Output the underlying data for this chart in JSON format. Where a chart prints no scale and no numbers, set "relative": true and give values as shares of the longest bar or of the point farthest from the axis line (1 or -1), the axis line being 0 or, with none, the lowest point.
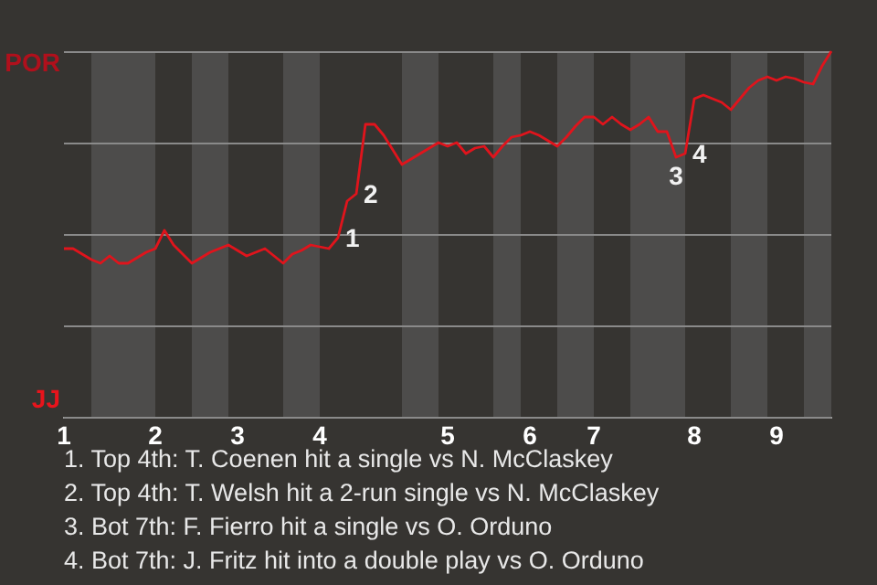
{
  "chart_data": {
    "type": "line",
    "relative": true,
    "categories": [
      "1",
      null,
      null,
      null,
      null,
      null,
      null,
      null,
      null,
      null,
      "2",
      null,
      null,
      null,
      null,
      null,
      null,
      null,
      null,
      "3",
      null,
      null,
      null,
      null,
      null,
      null,
      null,
      null,
      "4",
      null,
      null,
      null,
      null,
      null,
      null,
      null,
      null,
      null,
      null,
      null,
      null,
      null,
      "5",
      null,
      null,
      null,
      null,
      null,
      null,
      null,
      null,
      "6",
      null,
      null,
      null,
      null,
      null,
      null,
      "7",
      null,
      null,
      null,
      null,
      null,
      null,
      null,
      null,
      null,
      null,
      "8",
      null,
      null,
      null,
      null,
      null,
      null,
      null,
      null,
      "9",
      null,
      null,
      null,
      null,
      null,
      null
    ],
    "series": [
      {
        "color": "#e0141c",
        "values": [
          0.46,
          0.46,
          0.445,
          0.43,
          0.42,
          0.44,
          0.42,
          0.42,
          0.435,
          0.45,
          0.46,
          0.51,
          0.47,
          0.445,
          0.42,
          0.435,
          0.45,
          0.46,
          0.47,
          0.455,
          0.44,
          0.45,
          0.46,
          0.44,
          0.42,
          0.445,
          0.455,
          0.47,
          0.465,
          0.46,
          0.49,
          0.59,
          0.61,
          0.8,
          0.8,
          0.77,
          0.73,
          0.69,
          0.705,
          0.72,
          0.735,
          0.75,
          0.74,
          0.75,
          0.72,
          0.735,
          0.74,
          0.71,
          0.74,
          0.765,
          0.77,
          0.78,
          0.77,
          0.755,
          0.74,
          0.765,
          0.795,
          0.82,
          0.82,
          0.8,
          0.82,
          0.8,
          0.785,
          0.8,
          0.82,
          0.78,
          0.78,
          0.71,
          0.72,
          0.87,
          0.88,
          0.87,
          0.86,
          0.84,
          0.87,
          0.9,
          0.92,
          0.93,
          0.92,
          0.93,
          0.925,
          0.915,
          0.91,
          0.96,
          1
        ]
      }
    ],
    "grid": "y",
    "marker": "none",
    "annotations": [
      "1",
      "2",
      "3",
      "4",
      "POR",
      "JJ",
      "1. Top 4th: T. Coenen hit a single vs N. McClaskey",
      "2. Top 4th: T. Welsh hit a 2-run single vs N. McClaskey",
      "3. Bot 7th: F. Fierro hit a single vs O. Orduno",
      "4. Bot 7th: J. Fritz hit into a double play vs O. Orduno"
    ]
  }
}
